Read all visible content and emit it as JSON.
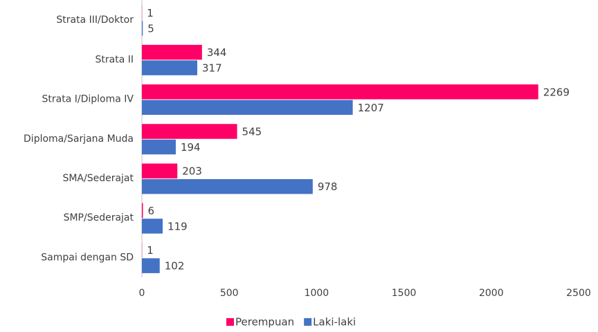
{
  "chart_data": {
    "type": "hbar",
    "categories": [
      "Strata III/Doktor",
      "Strata II",
      "Strata I/Diploma IV",
      "Diploma/Sarjana Muda",
      "SMA/Sederajat",
      "SMP/Sederajat",
      "Sampai dengan SD"
    ],
    "series": [
      {
        "name": "Perempuan",
        "color": "#ff0066",
        "values": [
          1,
          344,
          2269,
          545,
          203,
          6,
          1
        ]
      },
      {
        "name": "Laki-laki",
        "color": "#4472c4",
        "values": [
          5,
          317,
          1207,
          194,
          978,
          119,
          102
        ]
      }
    ],
    "xlim": [
      0,
      2500
    ],
    "xticks": [
      0,
      500,
      1000,
      1500,
      2000,
      2500
    ],
    "grid": false,
    "legend": "bottom"
  }
}
